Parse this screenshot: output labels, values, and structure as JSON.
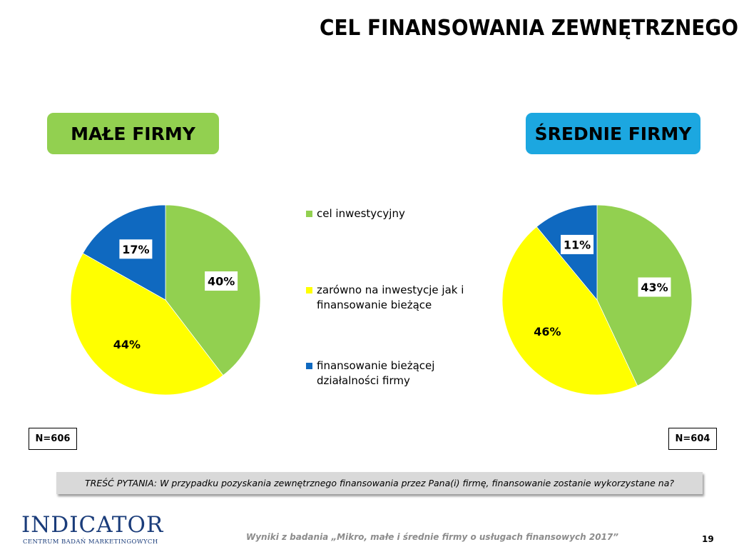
{
  "title": "CEL FINANSOWANIA ZEWNĘTRZNEGO",
  "groups": {
    "small": {
      "label": "MAŁE FIRMY",
      "color": "#92d050",
      "n": "N=606"
    },
    "medium": {
      "label": "ŚREDNIE FIRMY",
      "color": "#1ca7e0",
      "n": "N=604"
    }
  },
  "legend": [
    {
      "label": "cel inwestycyjny",
      "color": "#92d050"
    },
    {
      "label": "zarówno na inwestycje jak i finansowanie bieżące",
      "color": "#ffff00"
    },
    {
      "label": "finansowanie bieżącej działalności firmy",
      "color": "#0f69c0"
    }
  ],
  "chart_data": [
    {
      "type": "pie",
      "title": "",
      "categories": [
        "cel inwestycyjny",
        "zarówno na inwestycje jak i finansowanie bieżące",
        "finansowanie bieżącej działalności firmy"
      ],
      "values": [
        40,
        44,
        17
      ],
      "labels": [
        "40%",
        "44%",
        "17%"
      ],
      "colors": [
        "#92d050",
        "#ffff00",
        "#0f69c0"
      ]
    },
    {
      "type": "pie",
      "title": "",
      "categories": [
        "cel inwestycyjny",
        "zarówno na inwestycje jak i finansowanie bieżące",
        "finansowanie bieżącej działalności firmy"
      ],
      "values": [
        43,
        46,
        11
      ],
      "labels": [
        "43%",
        "46%",
        "11%"
      ],
      "colors": [
        "#92d050",
        "#ffff00",
        "#0f69c0"
      ]
    }
  ],
  "question": {
    "label": "TREŚĆ PYTANIA:",
    "text": "W przypadku pozyskania zewnętrznego finansowania przez Pana(i) firmę, finansowanie zostanie wykorzystane na?"
  },
  "footer": {
    "logo": "INDICATOR",
    "logo_sub": "CENTRUM BADAŃ MARKETINGOWYCH",
    "source": "Wyniki z badania „Mikro, małe i średnie firmy o usługach finansowych 2017”",
    "page": "19"
  }
}
